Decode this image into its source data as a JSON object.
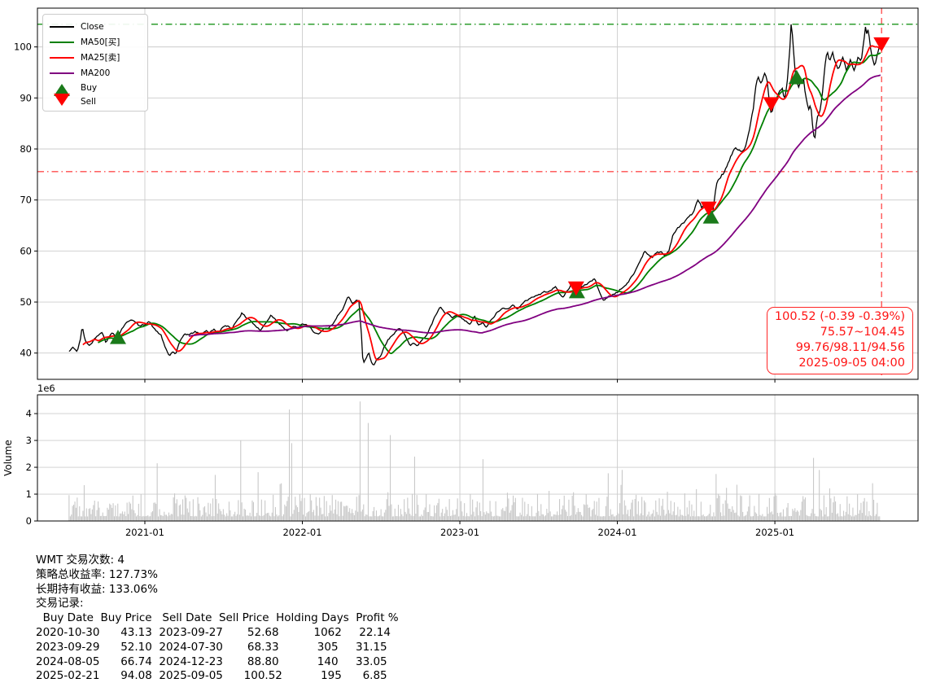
{
  "colors": {
    "close": "#000000",
    "ma50": "#008000",
    "ma25": "#ff0000",
    "ma200": "#800080",
    "buy_marker": "#1a7a1a",
    "sell_marker": "#ff0000",
    "hline_high": "#2e9e2e",
    "hline_low": "#ff4d4d",
    "vline": "#ff5555",
    "grid": "#cccccc",
    "volume_bar": "#c9c9c9",
    "annotation": "#ff1515"
  },
  "legend": {
    "items": [
      {
        "label": "Close",
        "type": "line",
        "color": "#000000"
      },
      {
        "label": "MA50[买]",
        "type": "line",
        "color": "#008000"
      },
      {
        "label": "MA25[卖]",
        "type": "line",
        "color": "#ff0000"
      },
      {
        "label": "MA200",
        "type": "line",
        "color": "#800080"
      },
      {
        "label": "Buy",
        "type": "triangle-up",
        "color": "#1a7a1a"
      },
      {
        "label": "Sell",
        "type": "triangle-down",
        "color": "#ff0000"
      }
    ]
  },
  "annotation": {
    "line1": "100.52 (-0.39 -0.39%)",
    "line2": "75.57~104.45",
    "line3": "99.76/98.11/94.56",
    "line4": "2025-09-05 04:00"
  },
  "chart_data": [
    {
      "type": "line",
      "title": "WMT close price with MA25/MA50/MA200 and buy/sell signals",
      "xlim": [
        2020.318,
        2025.909
      ],
      "ylim": [
        34.85,
        107.6
      ],
      "x_ticks": [
        {
          "year": 2021,
          "label": "2021-01"
        },
        {
          "year": 2022,
          "label": "2022-01"
        },
        {
          "year": 2023,
          "label": "2023-01"
        },
        {
          "year": 2024,
          "label": "2024-01"
        },
        {
          "year": 2025,
          "label": "2025-01"
        }
      ],
      "y_ticks": [
        40,
        50,
        60,
        70,
        80,
        90,
        100
      ],
      "hlines": [
        {
          "value": 104.45,
          "style": "dashdot",
          "colorKey": "hline_high"
        },
        {
          "value": 75.57,
          "style": "dashdot",
          "colorKey": "hline_low"
        }
      ],
      "vline": {
        "date": "2025-09-05",
        "style": "dashed",
        "colorKey": "vline"
      },
      "moving_averages": [
        {
          "name": "MA50[买]",
          "window_days": 50,
          "colorKey": "ma50"
        },
        {
          "name": "MA25[卖]",
          "window_days": 25,
          "colorKey": "ma25"
        },
        {
          "name": "MA200",
          "window_days": 200,
          "colorKey": "ma200"
        }
      ],
      "last_values": {
        "close": 100.52,
        "change": -0.39,
        "change_pct": -0.39,
        "range_low": 75.57,
        "range_high": 104.45,
        "ma25": 99.76,
        "ma50": 98.11,
        "ma200": 94.56,
        "timestamp": "2025-09-05 04:00"
      },
      "series_close": {
        "name": "Close",
        "anchors": [
          [
            2020.519,
            40.3
          ],
          [
            2020.545,
            41.1
          ],
          [
            2020.571,
            40.3
          ],
          [
            2020.592,
            42.8
          ],
          [
            2020.602,
            45.4
          ],
          [
            2020.618,
            42.6
          ],
          [
            2020.649,
            41.4
          ],
          [
            2020.685,
            43.0
          ],
          [
            2020.726,
            44.3
          ],
          [
            2020.752,
            42.2
          ],
          [
            2020.793,
            44.0
          ],
          [
            2020.83,
            43.1
          ],
          [
            2020.855,
            44.9
          ],
          [
            2020.892,
            46.2
          ],
          [
            2020.917,
            46.7
          ],
          [
            2020.943,
            45.9
          ],
          [
            2020.969,
            45.2
          ],
          [
            2021.0,
            45.7
          ],
          [
            2021.026,
            46.3
          ],
          [
            2021.062,
            44.6
          ],
          [
            2021.103,
            43.5
          ],
          [
            2021.129,
            41.0
          ],
          [
            2021.155,
            39.4
          ],
          [
            2021.176,
            40.3
          ],
          [
            2021.196,
            39.8
          ],
          [
            2021.217,
            41.8
          ],
          [
            2021.253,
            43.8
          ],
          [
            2021.284,
            43.6
          ],
          [
            2021.32,
            44.2
          ],
          [
            2021.357,
            43.6
          ],
          [
            2021.388,
            44.5
          ],
          [
            2021.408,
            44.0
          ],
          [
            2021.439,
            44.6
          ],
          [
            2021.465,
            44.0
          ],
          [
            2021.491,
            45.0
          ],
          [
            2021.527,
            45.3
          ],
          [
            2021.553,
            44.8
          ],
          [
            2021.579,
            46.2
          ],
          [
            2021.615,
            47.8
          ],
          [
            2021.641,
            47.0
          ],
          [
            2021.667,
            46.6
          ],
          [
            2021.693,
            45.6
          ],
          [
            2021.734,
            44.4
          ],
          [
            2021.765,
            45.8
          ],
          [
            2021.801,
            47.5
          ],
          [
            2021.837,
            46.4
          ],
          [
            2021.873,
            45.3
          ],
          [
            2021.904,
            44.2
          ],
          [
            2021.941,
            45.2
          ],
          [
            2021.972,
            44.8
          ],
          [
            2022.0,
            45.8
          ],
          [
            2022.034,
            45.3
          ],
          [
            2022.07,
            44.3
          ],
          [
            2022.106,
            43.6
          ],
          [
            2022.137,
            44.6
          ],
          [
            2022.168,
            44.9
          ],
          [
            2022.199,
            45.8
          ],
          [
            2022.23,
            47.6
          ],
          [
            2022.261,
            49.0
          ],
          [
            2022.292,
            51.0
          ],
          [
            2022.318,
            49.8
          ],
          [
            2022.344,
            50.6
          ],
          [
            2022.359,
            50.2
          ],
          [
            2022.375,
            43.5
          ],
          [
            2022.385,
            37.9
          ],
          [
            2022.406,
            39.0
          ],
          [
            2022.421,
            40.2
          ],
          [
            2022.437,
            38.3
          ],
          [
            2022.452,
            37.6
          ],
          [
            2022.473,
            38.9
          ],
          [
            2022.499,
            39.4
          ],
          [
            2022.519,
            41.3
          ],
          [
            2022.545,
            42.7
          ],
          [
            2022.576,
            43.6
          ],
          [
            2022.612,
            45.0
          ],
          [
            2022.638,
            44.3
          ],
          [
            2022.664,
            42.6
          ],
          [
            2022.685,
            41.3
          ],
          [
            2022.706,
            42.1
          ],
          [
            2022.731,
            41.6
          ],
          [
            2022.757,
            42.4
          ],
          [
            2022.788,
            43.5
          ],
          [
            2022.819,
            45.5
          ],
          [
            2022.85,
            47.6
          ],
          [
            2022.876,
            48.9
          ],
          [
            2022.902,
            47.9
          ],
          [
            2022.928,
            47.6
          ],
          [
            2022.953,
            46.8
          ],
          [
            2022.979,
            47.2
          ],
          [
            2023.0,
            47.0
          ],
          [
            2023.036,
            46.2
          ],
          [
            2023.067,
            45.6
          ],
          [
            2023.093,
            47.2
          ],
          [
            2023.119,
            45.4
          ],
          [
            2023.145,
            46.0
          ],
          [
            2023.165,
            44.9
          ],
          [
            2023.196,
            46.3
          ],
          [
            2023.233,
            47.8
          ],
          [
            2023.269,
            48.7
          ],
          [
            2023.305,
            48.9
          ],
          [
            2023.336,
            49.3
          ],
          [
            2023.367,
            48.8
          ],
          [
            2023.398,
            49.6
          ],
          [
            2023.429,
            50.4
          ],
          [
            2023.455,
            51.0
          ],
          [
            2023.491,
            51.3
          ],
          [
            2023.527,
            51.8
          ],
          [
            2023.558,
            52.2
          ],
          [
            2023.589,
            52.6
          ],
          [
            2023.61,
            52.9
          ],
          [
            2023.631,
            51.8
          ],
          [
            2023.651,
            50.8
          ],
          [
            2023.677,
            52.0
          ],
          [
            2023.703,
            53.3
          ],
          [
            2023.729,
            52.6
          ],
          [
            2023.749,
            52.2
          ],
          [
            2023.775,
            53.0
          ],
          [
            2023.806,
            53.6
          ],
          [
            2023.837,
            54.2
          ],
          [
            2023.858,
            54.5
          ],
          [
            2023.884,
            52.0
          ],
          [
            2023.915,
            50.3
          ],
          [
            2023.941,
            51.0
          ],
          [
            2023.966,
            51.4
          ],
          [
            2023.992,
            51.8
          ],
          [
            2024.023,
            52.6
          ],
          [
            2024.054,
            53.3
          ],
          [
            2024.085,
            54.6
          ],
          [
            2024.116,
            56.2
          ],
          [
            2024.147,
            58.3
          ],
          [
            2024.173,
            60.0
          ],
          [
            2024.199,
            59.3
          ],
          [
            2024.225,
            58.9
          ],
          [
            2024.251,
            59.6
          ],
          [
            2024.277,
            59.9
          ],
          [
            2024.302,
            59.0
          ],
          [
            2024.328,
            60.2
          ],
          [
            2024.354,
            63.4
          ],
          [
            2024.38,
            64.3
          ],
          [
            2024.411,
            65.2
          ],
          [
            2024.447,
            66.6
          ],
          [
            2024.483,
            67.5
          ],
          [
            2024.514,
            70.1
          ],
          [
            2024.535,
            68.6
          ],
          [
            2024.556,
            69.3
          ],
          [
            2024.576,
            67.2
          ],
          [
            2024.592,
            65.6
          ],
          [
            2024.607,
            67.5
          ],
          [
            2024.628,
            72.6
          ],
          [
            2024.649,
            74.3
          ],
          [
            2024.674,
            75.3
          ],
          [
            2024.695,
            76.4
          ],
          [
            2024.721,
            78.5
          ],
          [
            2024.752,
            80.3
          ],
          [
            2024.778,
            79.7
          ],
          [
            2024.809,
            80.1
          ],
          [
            2024.835,
            83.0
          ],
          [
            2024.861,
            87.5
          ],
          [
            2024.876,
            91.5
          ],
          [
            2024.892,
            94.4
          ],
          [
            2024.907,
            92.6
          ],
          [
            2024.922,
            93.5
          ],
          [
            2024.938,
            94.9
          ],
          [
            2024.954,
            93.0
          ],
          [
            2024.964,
            88.8
          ],
          [
            2024.979,
            86.7
          ],
          [
            2024.99,
            88.5
          ],
          [
            2025.005,
            89.5
          ],
          [
            2025.026,
            91.0
          ],
          [
            2025.047,
            91.8
          ],
          [
            2025.062,
            89.6
          ],
          [
            2025.078,
            93.0
          ],
          [
            2025.093,
            98.5
          ],
          [
            2025.103,
            104.3
          ],
          [
            2025.114,
            101.5
          ],
          [
            2025.124,
            96.0
          ],
          [
            2025.134,
            94.1
          ],
          [
            2025.15,
            92.5
          ],
          [
            2025.165,
            93.0
          ],
          [
            2025.181,
            94.3
          ],
          [
            2025.196,
            90.5
          ],
          [
            2025.212,
            87.8
          ],
          [
            2025.227,
            88.9
          ],
          [
            2025.243,
            83.5
          ],
          [
            2025.253,
            81.6
          ],
          [
            2025.269,
            86.5
          ],
          [
            2025.284,
            87.0
          ],
          [
            2025.3,
            90.0
          ],
          [
            2025.315,
            95.5
          ],
          [
            2025.331,
            99.3
          ],
          [
            2025.346,
            97.5
          ],
          [
            2025.367,
            98.8
          ],
          [
            2025.388,
            96.2
          ],
          [
            2025.403,
            95.4
          ],
          [
            2025.429,
            97.8
          ],
          [
            2025.455,
            95.2
          ],
          [
            2025.481,
            97.3
          ],
          [
            2025.506,
            95.4
          ],
          [
            2025.532,
            98.1
          ],
          [
            2025.548,
            97.0
          ],
          [
            2025.563,
            100.5
          ],
          [
            2025.574,
            103.7
          ],
          [
            2025.584,
            102.5
          ],
          [
            2025.594,
            103.3
          ],
          [
            2025.61,
            99.0
          ],
          [
            2025.636,
            96.2
          ],
          [
            2025.651,
            98.5
          ],
          [
            2025.662,
            100.0
          ],
          [
            2025.672,
            100.52
          ]
        ]
      }
    },
    {
      "type": "bar",
      "name": "Volume",
      "ylabel": "Volume",
      "scale_label": "1e6",
      "ylim": [
        0,
        4.7
      ],
      "y_ticks": [
        0,
        1,
        2,
        3,
        4
      ],
      "baseline_range": [
        0.15,
        1.3
      ],
      "spikes": [
        [
          2021.078,
          2.15
        ],
        [
          2021.605,
          3.0
        ],
        [
          2021.915,
          4.15
        ],
        [
          2021.935,
          2.9
        ],
        [
          2022.37,
          4.45
        ],
        [
          2022.416,
          3.65
        ],
        [
          2022.561,
          3.2
        ],
        [
          2022.716,
          2.4
        ],
        [
          2023.145,
          2.3
        ],
        [
          2024.034,
          1.9
        ],
        [
          2024.628,
          1.75
        ],
        [
          2025.248,
          2.35
        ],
        [
          2025.284,
          1.9
        ]
      ]
    }
  ],
  "trades": [
    {
      "buy_date": "2020-10-30",
      "buy_price": 43.13,
      "sell_date": "2023-09-27",
      "sell_price": 52.68,
      "holding_days": 1062,
      "profit_pct": 22.14
    },
    {
      "buy_date": "2023-09-29",
      "buy_price": 52.1,
      "sell_date": "2024-07-30",
      "sell_price": 68.33,
      "holding_days": 305,
      "profit_pct": 31.15
    },
    {
      "buy_date": "2024-08-05",
      "buy_price": 66.74,
      "sell_date": "2024-12-23",
      "sell_price": 88.8,
      "holding_days": 140,
      "profit_pct": 33.05
    },
    {
      "buy_date": "2025-02-21",
      "buy_price": 94.08,
      "sell_date": "2025-09-05",
      "sell_price": 100.52,
      "holding_days": 195,
      "profit_pct": 6.85
    }
  ],
  "stats": {
    "symbol": "WMT",
    "trade_count": 4,
    "strategy_return_pct": 127.73,
    "buy_hold_return_pct": 133.06,
    "line1": "WMT 交易次数: 4",
    "line2": "策略总收益率: 127.73%",
    "line3": "长期持有收益: 133.06%",
    "line4": "交易记录:",
    "table_headers": [
      "Buy Date",
      "Buy Price",
      "Sell Date",
      "Sell Price",
      "Holding Days",
      "Profit %"
    ]
  }
}
